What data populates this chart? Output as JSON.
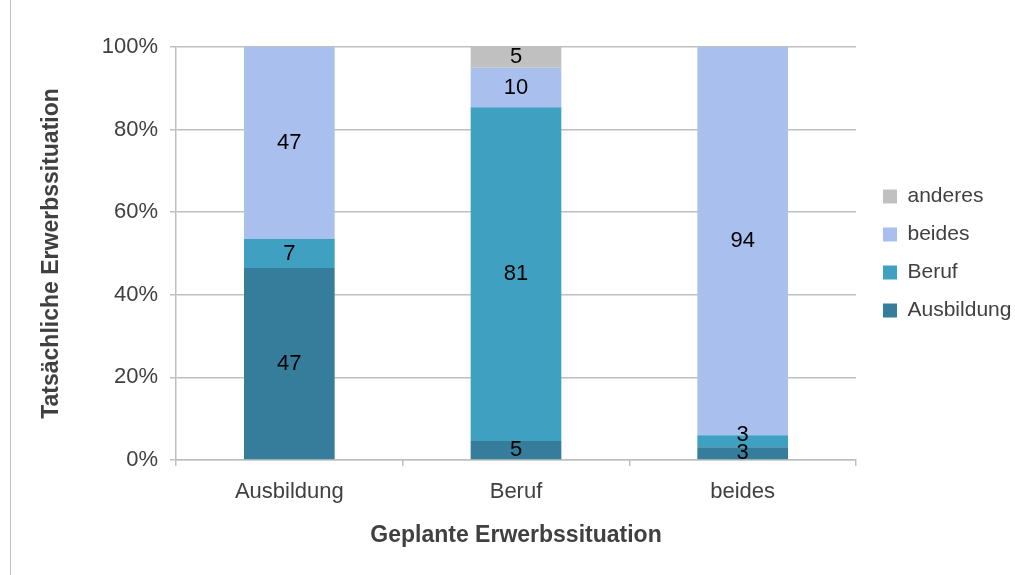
{
  "chart_data": {
    "type": "bar",
    "stacked": true,
    "xlabel": "Geplante Erwerbssituation",
    "ylabel": "Tatsächliche Erwerbssituation",
    "categories": [
      "Ausbildung",
      "Beruf",
      "beides"
    ],
    "series": [
      {
        "name": "Ausbildung",
        "color": "#367d9c",
        "values": [
          46.5,
          4.6,
          3.1
        ],
        "value_labels": [
          "47",
          "5",
          "3"
        ]
      },
      {
        "name": "Beruf",
        "color": "#40a0c2",
        "values": [
          7,
          80.8,
          2.9
        ],
        "value_labels": [
          "7",
          "81",
          "3"
        ]
      },
      {
        "name": "beides",
        "color": "#a9c0ef",
        "values": [
          46.5,
          9.6,
          94
        ],
        "value_labels": [
          "47",
          "10",
          "94"
        ]
      },
      {
        "name": "anderes",
        "color": "#c0c0c0",
        "values": [
          0,
          5,
          0
        ],
        "value_labels": [
          null,
          "5",
          null
        ]
      }
    ],
    "ylim": [
      0,
      100
    ],
    "yticks": [
      {
        "value": 0,
        "label": "0%"
      },
      {
        "value": 20,
        "label": "20%"
      },
      {
        "value": 40,
        "label": "40%"
      },
      {
        "value": 60,
        "label": "60%"
      },
      {
        "value": 80,
        "label": "80%"
      },
      {
        "value": 100,
        "label": "100%"
      }
    ],
    "grid": "y",
    "legend": "right"
  }
}
